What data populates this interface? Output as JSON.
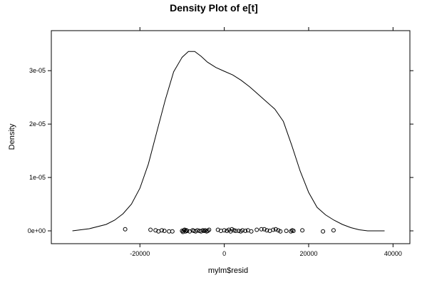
{
  "chart_data": {
    "type": "density",
    "title": "Density Plot of e[t]",
    "xlabel": "mylm$resid",
    "ylabel": "Density",
    "xlim": [
      -41000,
      44000
    ],
    "ylim": [
      -2.4e-06,
      3.75e-05
    ],
    "x_ticks": [
      -20000,
      0,
      20000,
      40000
    ],
    "x_tick_labels": [
      "-20000",
      "0",
      "20000",
      "40000"
    ],
    "y_ticks": [
      0,
      1e-05,
      2e-05,
      3e-05
    ],
    "y_tick_labels": [
      "0e+00",
      "1e-05",
      "2e-05",
      "3e-05"
    ],
    "grid": false,
    "legend": false,
    "series": [
      {
        "style": "line",
        "color": "#000000",
        "x": [
          -36000,
          -32000,
          -28000,
          -26000,
          -24000,
          -22000,
          -20000,
          -18000,
          -16000,
          -14000,
          -12000,
          -10000,
          -8500,
          -7000,
          -5500,
          -4000,
          -2000,
          0,
          2000,
          4000,
          6000,
          8000,
          10000,
          12000,
          14000,
          16000,
          18000,
          20000,
          22000,
          24000,
          26000,
          28000,
          30000,
          32000,
          34000,
          38000
        ],
        "y": [
          0.0,
          4e-07,
          1.2e-06,
          2e-06,
          3.2e-06,
          5e-06,
          8e-06,
          1.25e-05,
          1.85e-05,
          2.45e-05,
          2.98e-05,
          3.25e-05,
          3.36e-05,
          3.36e-05,
          3.27e-05,
          3.16e-05,
          3.06e-05,
          2.99e-05,
          2.92e-05,
          2.82e-05,
          2.7e-05,
          2.56e-05,
          2.42e-05,
          2.28e-05,
          2.05e-05,
          1.6e-05,
          1.12e-05,
          7.2e-06,
          4.4e-06,
          3e-06,
          2e-06,
          1.2e-06,
          6e-07,
          2e-07,
          0.0,
          0.0
        ]
      },
      {
        "style": "points",
        "color": "#000000",
        "x": [
          -23500,
          -17500,
          -16300,
          -15600,
          -14800,
          -14200,
          -13100,
          -12300,
          -10000,
          -9800,
          -9600,
          -9400,
          -9200,
          -9000,
          -8800,
          -8200,
          -7500,
          -7200,
          -6800,
          -6400,
          -5900,
          -5500,
          -5100,
          -4800,
          -4500,
          -4200,
          -3900,
          -3600,
          -1500,
          -800,
          0,
          600,
          1100,
          1500,
          1800,
          2300,
          2700,
          3400,
          3900,
          4300,
          5000,
          5600,
          6400,
          7700,
          8800,
          9500,
          10100,
          10800,
          11600,
          12200,
          12800,
          13300,
          14700,
          15800,
          16100,
          16400,
          18500,
          23400,
          25900
        ],
        "y": [
          3e-07,
          2e-07,
          1e-07,
          -1e-07,
          1e-07,
          0,
          -1e-07,
          -1e-07,
          0,
          -2e-07,
          1e-07,
          2e-07,
          -1e-07,
          1e-07,
          0,
          -1e-07,
          1e-07,
          0,
          -1e-07,
          1e-07,
          0,
          -1e-07,
          1e-07,
          0,
          1e-07,
          -1e-07,
          0,
          2e-07,
          2e-07,
          0,
          1e-07,
          0,
          2e-07,
          -1e-07,
          3e-07,
          1e-07,
          0,
          0,
          -1e-07,
          1e-07,
          0,
          1e-07,
          -1e-07,
          2e-07,
          3e-07,
          3e-07,
          1e-07,
          0,
          2e-07,
          3e-07,
          1e-07,
          -1e-07,
          0,
          -1e-07,
          1e-07,
          0,
          1e-07,
          -1e-07,
          1e-07
        ]
      }
    ]
  }
}
